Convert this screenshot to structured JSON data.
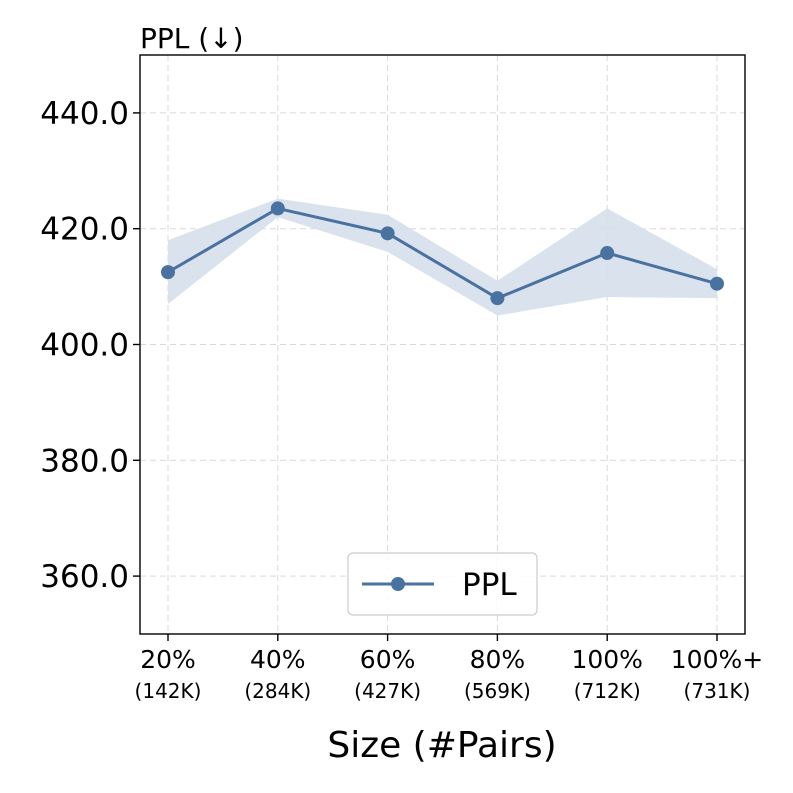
{
  "chart_data": {
    "type": "line",
    "title": "",
    "ylabel": "PPL (↓)",
    "xlabel": "Size (#Pairs)",
    "categories": [
      "20%",
      "40%",
      "60%",
      "80%",
      "100%",
      "100%+"
    ],
    "category_sublabels": [
      "(142K)",
      "(284K)",
      "(427K)",
      "(569K)",
      "(712K)",
      "(731K)"
    ],
    "ylim": [
      350,
      450
    ],
    "yticks": [
      360,
      380,
      400,
      420,
      440
    ],
    "ytick_labels": [
      "360.0",
      "380.0",
      "400.0",
      "420.0",
      "440.0"
    ],
    "grid": true,
    "legend_position": "bottom-center",
    "series": [
      {
        "name": "PPL",
        "color": "#4a72a0",
        "values": [
          412.5,
          423.5,
          419.2,
          408.0,
          415.8,
          410.5
        ],
        "band_lower": [
          407.0,
          422.0,
          416.0,
          405.0,
          408.2,
          408.0
        ],
        "band_upper": [
          418.0,
          425.2,
          422.4,
          411.0,
          423.5,
          413.0
        ],
        "band_color": "#d5dfeb"
      }
    ]
  }
}
